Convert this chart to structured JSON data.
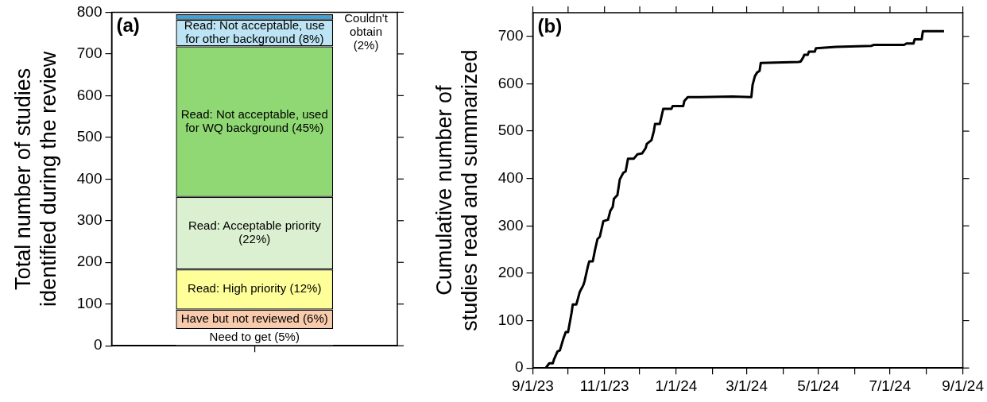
{
  "chart_data": [
    {
      "type": "bar",
      "title": "(a)",
      "ylabel": "Total number of studies identified during the review",
      "categories": [
        null
      ],
      "stacked": true,
      "ylim": [
        0,
        800
      ],
      "yticks": [
        0,
        100,
        200,
        300,
        400,
        500,
        600,
        700,
        800
      ],
      "series": [
        {
          "name": "Need to get (5%)",
          "color": "#ffffff",
          "values": [
            40
          ]
        },
        {
          "name": "Have but not reviewed (6%)",
          "color": "#f8cbad",
          "values": [
            47
          ]
        },
        {
          "name": "Read: High priority (12%)",
          "color": "#ffff99",
          "values": [
            96
          ]
        },
        {
          "name": "Read: Acceptable priority (22%)",
          "color": "#dbf0d0",
          "values": [
            174
          ]
        },
        {
          "name": "Read: Not acceptable, used for WQ background (45%)",
          "color": "#8fd873",
          "values": [
            361
          ]
        },
        {
          "name": "Read: Not acceptable, use for other background (8%)",
          "color": "#bde4f4",
          "values": [
            64
          ]
        },
        {
          "name": "Couldn't obtain (2%)",
          "color": "#3ba3dc",
          "values": [
            13
          ]
        }
      ]
    },
    {
      "type": "line",
      "title": "(b)",
      "ylabel": "Cumulative number of studies read and summarized",
      "xlim": [
        "2023-09-01",
        "2024-09-01"
      ],
      "ylim": [
        0,
        750
      ],
      "xticks": [
        {
          "value": "2023-09-01",
          "label": "9/1/23"
        },
        {
          "value": "2023-10-01",
          "label": null
        },
        {
          "value": "2023-11-01",
          "label": "11/1/23"
        },
        {
          "value": "2023-12-01",
          "label": null
        },
        {
          "value": "2024-01-01",
          "label": "1/1/24"
        },
        {
          "value": "2024-02-01",
          "label": null
        },
        {
          "value": "2024-03-01",
          "label": "3/1/24"
        },
        {
          "value": "2024-04-01",
          "label": null
        },
        {
          "value": "2024-05-01",
          "label": "5/1/24"
        },
        {
          "value": "2024-06-01",
          "label": null
        },
        {
          "value": "2024-07-01",
          "label": "7/1/24"
        },
        {
          "value": "2024-08-01",
          "label": null
        },
        {
          "value": "2024-09-01",
          "label": "9/1/24"
        }
      ],
      "yticks": [
        0,
        100,
        200,
        300,
        400,
        500,
        600,
        700
      ],
      "series": [
        {
          "color": "#000000",
          "x": [
            "2023-09-12",
            "2023-09-15",
            "2023-09-18",
            "2023-09-19",
            "2023-09-22",
            "2023-09-24",
            "2023-09-27",
            "2023-09-29",
            "2023-10-01",
            "2023-10-04",
            "2023-10-05",
            "2023-10-08",
            "2023-10-11",
            "2023-10-14",
            "2023-10-15",
            "2023-10-18",
            "2023-10-19",
            "2023-10-22",
            "2023-10-24",
            "2023-10-26",
            "2023-10-28",
            "2023-10-31",
            "2023-11-04",
            "2023-11-06",
            "2023-11-08",
            "2023-11-09",
            "2023-11-12",
            "2023-11-14",
            "2023-11-17",
            "2023-11-19",
            "2023-11-21",
            "2023-11-26",
            "2023-11-29",
            "2023-12-03",
            "2023-12-06",
            "2023-12-07",
            "2023-12-11",
            "2023-12-13",
            "2023-12-14",
            "2023-12-18",
            "2023-12-19",
            "2023-12-21",
            "2023-12-28",
            "2023-12-29",
            "2024-01-07",
            "2024-01-08",
            "2024-01-11",
            "2024-01-21",
            "2024-02-18",
            "2024-03-05",
            "2024-03-06",
            "2024-03-08",
            "2024-03-10",
            "2024-03-12",
            "2024-03-13",
            "2024-04-14",
            "2024-04-16",
            "2024-04-18",
            "2024-04-19",
            "2024-04-22",
            "2024-04-23",
            "2024-04-28",
            "2024-04-29",
            "2024-05-16",
            "2024-06-15",
            "2024-06-17",
            "2024-07-13",
            "2024-07-15",
            "2024-07-21",
            "2024-07-22",
            "2024-07-28",
            "2024-07-29",
            "2024-08-16"
          ],
          "values": [
            0,
            10,
            10,
            18,
            35,
            37,
            62,
            76,
            76,
            117,
            134,
            134,
            161,
            175,
            183,
            216,
            225,
            225,
            250,
            272,
            277,
            310,
            313,
            332,
            340,
            357,
            365,
            398,
            412,
            415,
            442,
            442,
            451,
            453,
            464,
            473,
            481,
            500,
            515,
            515,
            525,
            547,
            547,
            553,
            553,
            564,
            572,
            572,
            573,
            572,
            597,
            616,
            624,
            627,
            644,
            646,
            647,
            655,
            661,
            661,
            668,
            668,
            675,
            678,
            680,
            682,
            682,
            685,
            685,
            694,
            694,
            711,
            711
          ]
        }
      ]
    }
  ]
}
